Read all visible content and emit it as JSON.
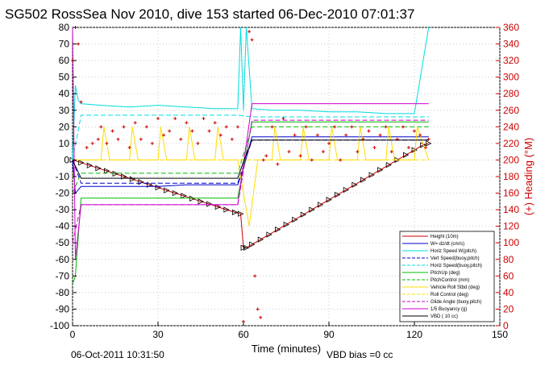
{
  "chart_data": {
    "type": "line",
    "title": "SG502 RossSea Nov 2010, dive 153 started 06-Dec-2010 07:01:37",
    "xlabel": "Time (minutes)",
    "ylabel_right": "(+) Heading (°M)",
    "footer_left": "06-Oct-2011 10:31:50",
    "footer_right": "VBD bias =0 cc",
    "xlim": [
      0,
      150
    ],
    "ylim": [
      -100,
      80
    ],
    "ylim_right": [
      0,
      360
    ],
    "x_ticks": [
      "0",
      "30",
      "60",
      "90",
      "120",
      "150"
    ],
    "y_ticks": [
      "80",
      "70",
      "60",
      "50",
      "40",
      "30",
      "20",
      "10",
      "0",
      "-10",
      "-20",
      "-30",
      "-40",
      "-50",
      "-60",
      "-70",
      "-80",
      "-90",
      "-100"
    ],
    "y_ticks_right": [
      "360",
      "340",
      "320",
      "300",
      "280",
      "260",
      "240",
      "220",
      "200",
      "180",
      "160",
      "140",
      "120",
      "100",
      "80",
      "60",
      "40",
      "20",
      "0"
    ],
    "grid": true,
    "legend_position": "bottom-right",
    "series": [
      {
        "name": "Height (10m)",
        "color": "#cc0000",
        "style": "solid",
        "marker": "triangle",
        "x": [
          0,
          3,
          6,
          9,
          12,
          15,
          18,
          21,
          24,
          27,
          30,
          33,
          36,
          39,
          42,
          45,
          48,
          51,
          54,
          57,
          59,
          60,
          61,
          63,
          66,
          69,
          72,
          75,
          78,
          81,
          84,
          87,
          90,
          93,
          96,
          99,
          102,
          105,
          108,
          111,
          114,
          117,
          120,
          123,
          125
        ],
        "y": [
          0,
          -1.6,
          -3.3,
          -5.0,
          -6.6,
          -8.3,
          -10.0,
          -11.6,
          -13.3,
          -15.0,
          -16.6,
          -18.3,
          -20.0,
          -21.6,
          -23.3,
          -25.0,
          -26.6,
          -28.3,
          -30.0,
          -31.6,
          -32.5,
          -53,
          -53,
          -51,
          -48,
          -45,
          -42,
          -39,
          -36,
          -33,
          -30,
          -27,
          -24,
          -21,
          -18,
          -15,
          -12,
          -9,
          -6,
          -3,
          0,
          3,
          6,
          9,
          10
        ]
      },
      {
        "name": "W= dz/dt (cm/s)",
        "color": "#0000cc",
        "style": "solid",
        "x": [
          0,
          1,
          2,
          3,
          10,
          20,
          30,
          40,
          50,
          58,
          60,
          63,
          70,
          80,
          90,
          100,
          110,
          120,
          125
        ],
        "y": [
          0,
          -20,
          -18,
          -16,
          -16,
          -16,
          -16,
          -15,
          -15,
          -15,
          -5,
          14,
          14,
          14,
          14,
          14,
          14,
          14,
          14
        ]
      },
      {
        "name": "Horiz Speed W(pitch)",
        "color": "#00dddd",
        "style": "solid",
        "x": [
          0,
          1,
          2,
          3,
          10,
          20,
          30,
          40,
          50,
          58,
          59,
          60,
          61,
          63,
          70,
          80,
          90,
          100,
          110,
          120,
          125
        ],
        "y": [
          0,
          45,
          36,
          34,
          33,
          32,
          33,
          32,
          31,
          31,
          80,
          30,
          80,
          31,
          30,
          30,
          29,
          29,
          28,
          28,
          80
        ]
      },
      {
        "name": "Vert Speed(buoy,pitch)",
        "color": "#0000cc",
        "style": "dashed",
        "x": [
          0,
          3,
          20,
          40,
          58,
          63,
          80,
          100,
          125
        ],
        "y": [
          0,
          -14,
          -14,
          -14,
          -14,
          12,
          12,
          12,
          12
        ]
      },
      {
        "name": "Horiz Speed(buoy,pitch)",
        "color": "#00dddd",
        "style": "dashed",
        "x": [
          0,
          3,
          20,
          40,
          58,
          63,
          80,
          100,
          125
        ],
        "y": [
          0,
          27,
          27,
          27,
          27,
          26,
          26,
          26,
          26
        ]
      },
      {
        "name": "PitchUp (deg)",
        "color": "#00bb00",
        "style": "solid",
        "x": [
          0,
          1,
          3,
          20,
          40,
          58,
          63,
          80,
          100,
          125
        ],
        "y": [
          -75,
          -70,
          -23,
          -23,
          -23,
          -23,
          23,
          23,
          23,
          23
        ]
      },
      {
        "name": "PitchControl (mm)",
        "color": "#00bb00",
        "style": "dashed",
        "x": [
          0,
          3,
          20,
          40,
          58,
          63,
          80,
          100,
          125
        ],
        "y": [
          -20,
          -8,
          -8,
          -8,
          -8,
          20,
          20,
          20,
          20
        ]
      },
      {
        "name": "Vehicle Roll Stbd (deg)",
        "color": "#ffdd00",
        "style": "solid",
        "x": [
          0,
          3,
          10,
          11,
          13,
          20,
          21,
          23,
          30,
          31,
          33,
          40,
          41,
          43,
          50,
          51,
          53,
          58,
          62,
          65,
          70,
          71,
          73,
          80,
          81,
          83,
          90,
          91,
          93,
          100,
          101,
          103,
          110,
          111,
          113,
          120,
          121,
          125
        ],
        "y": [
          0,
          0,
          0,
          20,
          0,
          0,
          20,
          0,
          0,
          20,
          0,
          0,
          20,
          0,
          0,
          20,
          0,
          0,
          -40,
          0,
          0,
          20,
          0,
          0,
          20,
          0,
          0,
          20,
          0,
          0,
          20,
          0,
          0,
          20,
          0,
          0,
          20,
          0
        ]
      },
      {
        "name": "Roll Control (deg)",
        "color": "#ffdd00",
        "style": "dashed",
        "x": [
          0,
          3,
          20,
          40,
          58,
          63,
          80,
          100,
          125
        ],
        "y": [
          0,
          0,
          0,
          0,
          0,
          0,
          0,
          0,
          0
        ]
      },
      {
        "name": "Glide Angle (buoy,pitch)",
        "color": "#cc00cc",
        "style": "dashed",
        "x": [
          0,
          3,
          20,
          40,
          58,
          63,
          80,
          100,
          125
        ],
        "y": [
          -50,
          -27,
          -27,
          -27,
          -27,
          24,
          24,
          24,
          24
        ]
      },
      {
        "name": "1/5 Buoyancy (g)",
        "color": "#cc00cc",
        "style": "solid",
        "x": [
          0,
          1,
          3,
          20,
          40,
          58,
          63,
          80,
          100,
          125
        ],
        "y": [
          80,
          -60,
          -27,
          -27,
          -27,
          -27,
          34,
          34,
          34,
          34
        ]
      },
      {
        "name": "VBD ( 10 cc)",
        "color": "#000000",
        "style": "solid",
        "x": [
          0,
          3,
          20,
          40,
          58,
          60,
          63,
          80,
          100,
          125
        ],
        "y": [
          0,
          -11,
          -11,
          -11,
          -11,
          -1,
          12,
          12,
          12,
          12
        ]
      },
      {
        "name": "Heading",
        "axis": "right",
        "color": "#cc0000",
        "style": "markers",
        "x": [
          0,
          1,
          2,
          3,
          5,
          7,
          9,
          10,
          12,
          14,
          16,
          18,
          20,
          22,
          24,
          26,
          28,
          30,
          32,
          34,
          36,
          38,
          40,
          42,
          44,
          46,
          48,
          50,
          52,
          54,
          56,
          58,
          60,
          62,
          63,
          64,
          65,
          66,
          67,
          68,
          70,
          72,
          74,
          76,
          78,
          80,
          82,
          84,
          86,
          88,
          90,
          92,
          94,
          96,
          98,
          100,
          102,
          104,
          106,
          108,
          110,
          112,
          114,
          116,
          118,
          120,
          122,
          124,
          125
        ],
        "y": [
          320,
          360,
          340,
          270,
          215,
          220,
          225,
          240,
          220,
          235,
          225,
          240,
          215,
          245,
          225,
          240,
          220,
          250,
          230,
          235,
          250,
          225,
          245,
          235,
          220,
          250,
          235,
          245,
          230,
          240,
          225,
          240,
          5,
          355,
          345,
          60,
          20,
          10,
          200,
          205,
          240,
          195,
          250,
          210,
          230,
          205,
          240,
          200,
          230,
          210,
          220,
          240,
          200,
          230,
          240,
          210,
          225,
          235,
          215,
          230,
          240,
          210,
          225,
          240,
          215,
          235,
          230,
          215,
          225
        ]
      }
    ]
  }
}
